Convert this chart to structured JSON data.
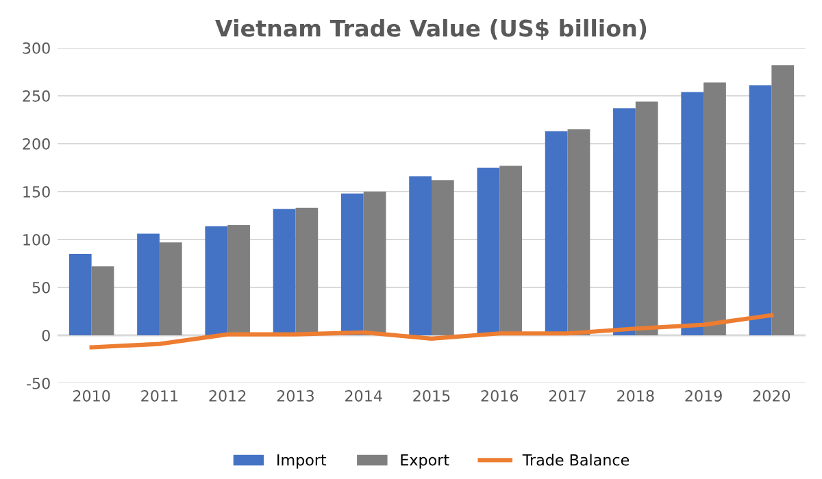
{
  "chart_data": {
    "type": "bar",
    "title": "Vietnam Trade Value (US$ billion)",
    "categories": [
      "2010",
      "2011",
      "2012",
      "2013",
      "2014",
      "2015",
      "2016",
      "2017",
      "2018",
      "2019",
      "2020"
    ],
    "series": [
      {
        "name": "Import",
        "color": "#4472c4",
        "values": [
          85,
          106,
          114,
          132,
          148,
          166,
          175,
          213,
          237,
          254,
          261
        ]
      },
      {
        "name": "Export",
        "color": "#7f7f7f",
        "values": [
          72,
          97,
          115,
          133,
          150,
          162,
          177,
          215,
          244,
          264,
          282
        ]
      },
      {
        "name": "Trade Balance",
        "type": "line",
        "color": "#ed7d31",
        "values": [
          -12.5,
          -9,
          1,
          1,
          3,
          -3.5,
          2,
          2,
          7,
          11,
          21
        ]
      }
    ],
    "ylim": [
      -50,
      300
    ],
    "yticks": [
      -50,
      0,
      50,
      100,
      150,
      200,
      250,
      300
    ],
    "grid": "y",
    "legend": "bottom",
    "marker": "none",
    "line_style": "solid"
  }
}
